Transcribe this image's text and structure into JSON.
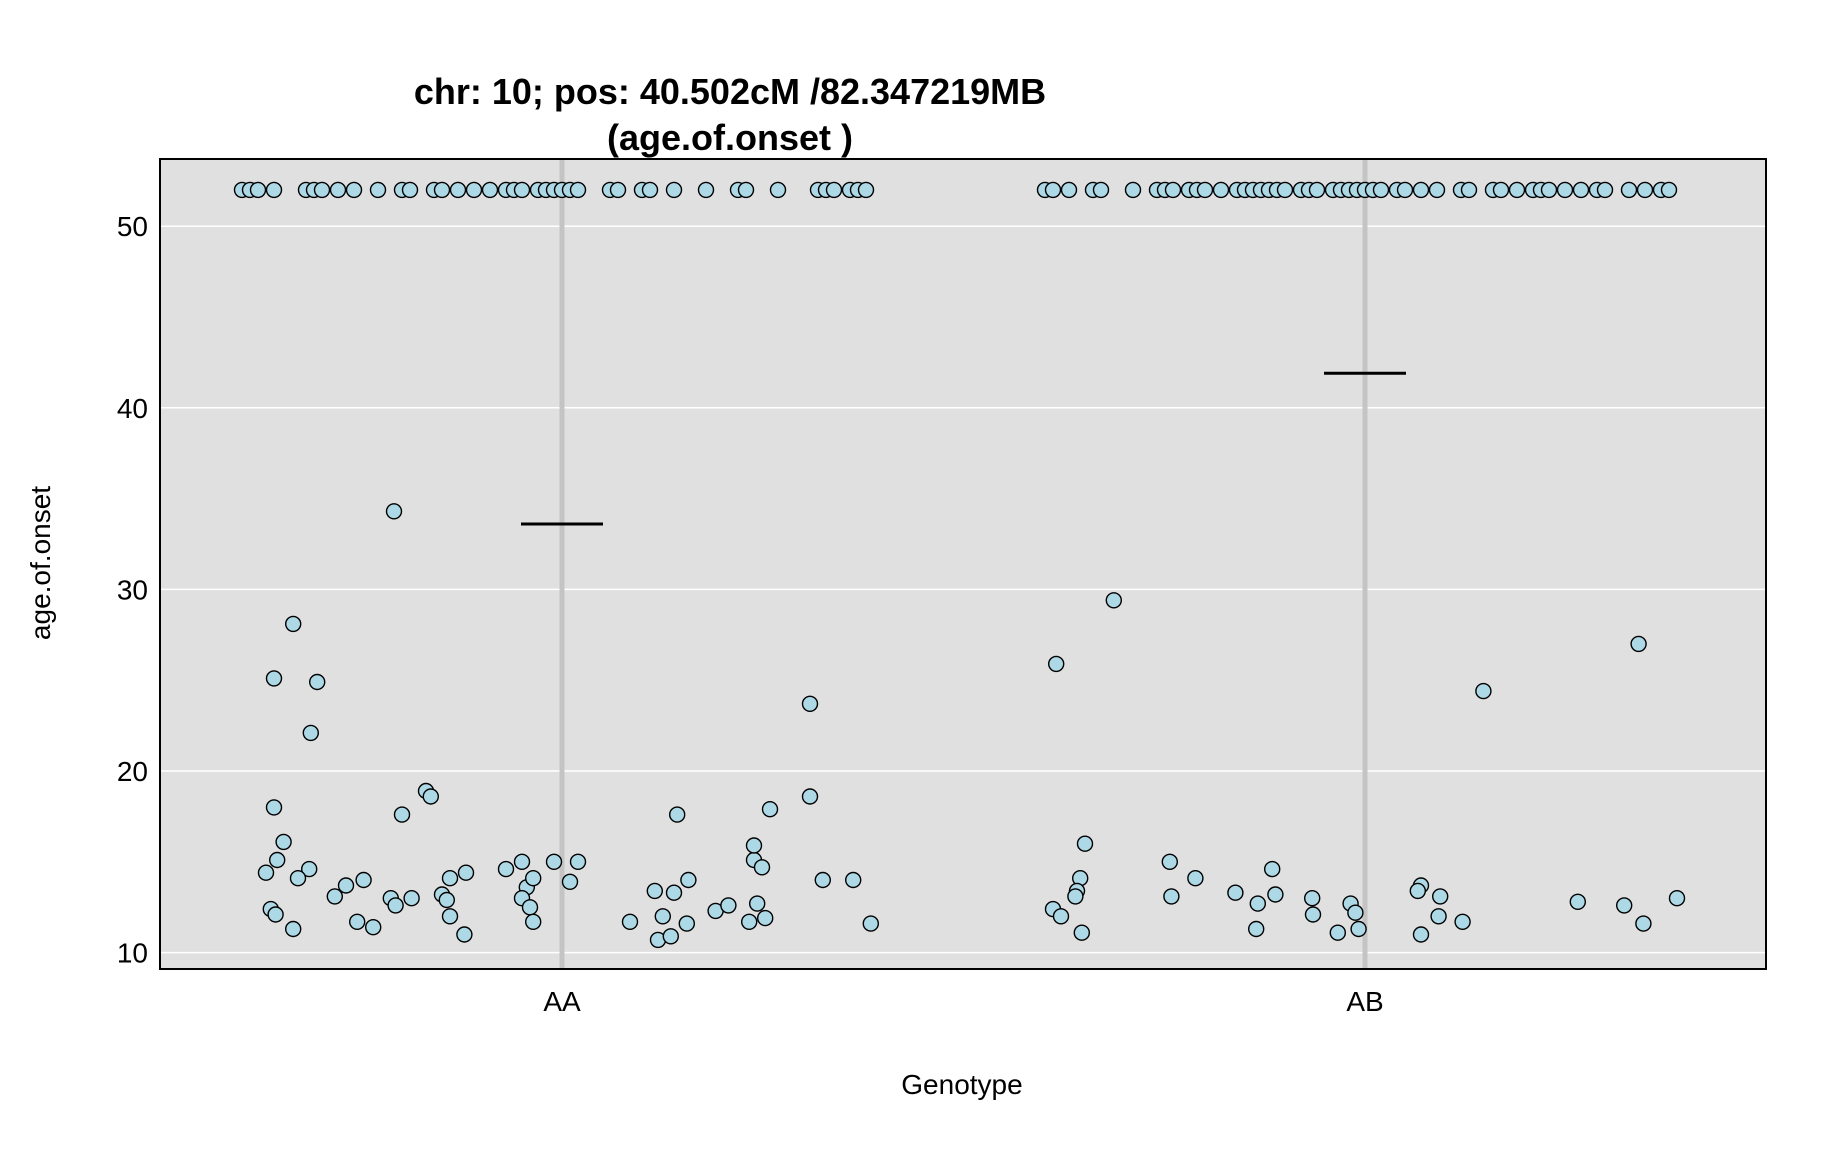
{
  "chart_data": {
    "type": "scatter",
    "title_line1": "chr: 10; pos: 40.502cM /82.347219MB",
    "title_line2": "(age.of.onset )",
    "xlabel": "Genotype",
    "ylabel": "age.of.onset",
    "categories": [
      "AA",
      "AB"
    ],
    "yticks": [
      10,
      20,
      30,
      40,
      50
    ],
    "ylim": [
      9.1,
      53.7
    ],
    "grid": true,
    "colors": {
      "panel": "#e0e0e0",
      "gridline": "#ffffff",
      "category_line": "#c4c4c4",
      "point_fill": "#add8e6",
      "point_stroke": "#000000"
    },
    "means": {
      "AA": 33.6,
      "AB": 41.9
    },
    "series": [
      {
        "category": "AA",
        "points": [
          [
            -0.2,
            52
          ],
          [
            -0.195,
            52
          ],
          [
            -0.19,
            52
          ],
          [
            -0.18,
            52
          ],
          [
            -0.16,
            52
          ],
          [
            -0.155,
            52
          ],
          [
            -0.15,
            52
          ],
          [
            -0.14,
            52
          ],
          [
            -0.13,
            52
          ],
          [
            -0.115,
            52
          ],
          [
            -0.1,
            52
          ],
          [
            -0.095,
            52
          ],
          [
            -0.08,
            52
          ],
          [
            -0.075,
            52
          ],
          [
            -0.065,
            52
          ],
          [
            -0.055,
            52
          ],
          [
            -0.045,
            52
          ],
          [
            -0.035,
            52
          ],
          [
            -0.03,
            52
          ],
          [
            -0.025,
            52
          ],
          [
            -0.015,
            52
          ],
          [
            -0.01,
            52
          ],
          [
            -0.005,
            52
          ],
          [
            0.0,
            52
          ],
          [
            0.005,
            52
          ],
          [
            0.01,
            52
          ],
          [
            0.03,
            52
          ],
          [
            0.035,
            52
          ],
          [
            0.05,
            52
          ],
          [
            0.055,
            52
          ],
          [
            0.07,
            52
          ],
          [
            0.09,
            52
          ],
          [
            0.11,
            52
          ],
          [
            0.115,
            52
          ],
          [
            0.135,
            52
          ],
          [
            0.16,
            52
          ],
          [
            0.165,
            52
          ],
          [
            0.17,
            52
          ],
          [
            0.18,
            52
          ],
          [
            0.185,
            52
          ],
          [
            0.19,
            52
          ],
          [
            -0.105,
            34.3
          ],
          [
            -0.168,
            28.1
          ],
          [
            -0.18,
            25.1
          ],
          [
            -0.153,
            24.9
          ],
          [
            -0.157,
            22.1
          ],
          [
            -0.085,
            18.9
          ],
          [
            -0.082,
            18.6
          ],
          [
            -0.18,
            18.0
          ],
          [
            -0.1,
            17.6
          ],
          [
            -0.174,
            16.1
          ],
          [
            -0.178,
            15.1
          ],
          [
            -0.185,
            14.4
          ],
          [
            -0.158,
            14.6
          ],
          [
            -0.165,
            14.1
          ],
          [
            -0.124,
            14.0
          ],
          [
            -0.135,
            13.7
          ],
          [
            -0.07,
            14.1
          ],
          [
            -0.06,
            14.4
          ],
          [
            -0.142,
            13.1
          ],
          [
            -0.107,
            13.0
          ],
          [
            -0.094,
            13.0
          ],
          [
            -0.075,
            13.2
          ],
          [
            -0.072,
            12.9
          ],
          [
            -0.104,
            12.6
          ],
          [
            -0.182,
            12.4
          ],
          [
            -0.179,
            12.1
          ],
          [
            -0.128,
            11.7
          ],
          [
            -0.07,
            12.0
          ],
          [
            -0.168,
            11.3
          ],
          [
            -0.118,
            11.4
          ],
          [
            -0.061,
            11.0
          ],
          [
            -0.035,
            14.6
          ],
          [
            -0.025,
            15.0
          ],
          [
            -0.022,
            13.6
          ],
          [
            -0.025,
            13.0
          ],
          [
            -0.02,
            12.5
          ],
          [
            -0.018,
            14.1
          ],
          [
            -0.018,
            11.7
          ],
          [
            -0.005,
            15.0
          ],
          [
            0.005,
            13.9
          ],
          [
            0.01,
            15.0
          ],
          [
            0.072,
            17.6
          ],
          [
            0.058,
            13.4
          ],
          [
            0.079,
            14.0
          ],
          [
            0.07,
            13.3
          ],
          [
            0.0425,
            11.7
          ],
          [
            0.063,
            12.0
          ],
          [
            0.06,
            10.7
          ],
          [
            0.068,
            10.9
          ],
          [
            0.078,
            11.6
          ],
          [
            0.096,
            12.3
          ],
          [
            0.104,
            12.6
          ],
          [
            0.117,
            11.7
          ],
          [
            0.122,
            12.7
          ],
          [
            0.127,
            11.9
          ],
          [
            0.12,
            15.1
          ],
          [
            0.12,
            15.9
          ],
          [
            0.125,
            14.7
          ],
          [
            0.13,
            17.9
          ],
          [
            0.155,
            23.7
          ],
          [
            0.155,
            18.6
          ],
          [
            0.163,
            14.0
          ],
          [
            0.182,
            14.0
          ],
          [
            0.193,
            11.6
          ]
        ]
      },
      {
        "category": "AB",
        "points": [
          [
            -0.2,
            52
          ],
          [
            -0.195,
            52
          ],
          [
            -0.185,
            52
          ],
          [
            -0.17,
            52
          ],
          [
            -0.165,
            52
          ],
          [
            -0.145,
            52
          ],
          [
            -0.13,
            52
          ],
          [
            -0.125,
            52
          ],
          [
            -0.12,
            52
          ],
          [
            -0.11,
            52
          ],
          [
            -0.105,
            52
          ],
          [
            -0.1,
            52
          ],
          [
            -0.09,
            52
          ],
          [
            -0.08,
            52
          ],
          [
            -0.075,
            52
          ],
          [
            -0.07,
            52
          ],
          [
            -0.065,
            52
          ],
          [
            -0.06,
            52
          ],
          [
            -0.055,
            52
          ],
          [
            -0.05,
            52
          ],
          [
            -0.04,
            52
          ],
          [
            -0.035,
            52
          ],
          [
            -0.03,
            52
          ],
          [
            -0.02,
            52
          ],
          [
            -0.015,
            52
          ],
          [
            -0.01,
            52
          ],
          [
            -0.005,
            52
          ],
          [
            0.0,
            52
          ],
          [
            0.005,
            52
          ],
          [
            0.01,
            52
          ],
          [
            0.02,
            52
          ],
          [
            0.025,
            52
          ],
          [
            0.035,
            52
          ],
          [
            0.045,
            52
          ],
          [
            0.06,
            52
          ],
          [
            0.065,
            52
          ],
          [
            0.08,
            52
          ],
          [
            0.085,
            52
          ],
          [
            0.095,
            52
          ],
          [
            0.105,
            52
          ],
          [
            0.11,
            52
          ],
          [
            0.115,
            52
          ],
          [
            0.125,
            52
          ],
          [
            0.135,
            52
          ],
          [
            0.145,
            52
          ],
          [
            0.15,
            52
          ],
          [
            0.165,
            52
          ],
          [
            0.175,
            52
          ],
          [
            0.185,
            52
          ],
          [
            0.19,
            52
          ],
          [
            -0.157,
            29.4
          ],
          [
            -0.193,
            25.9
          ],
          [
            -0.175,
            16.0
          ],
          [
            -0.178,
            14.1
          ],
          [
            -0.18,
            13.4
          ],
          [
            -0.181,
            13.1
          ],
          [
            -0.195,
            12.4
          ],
          [
            -0.19,
            12.0
          ],
          [
            -0.177,
            11.1
          ],
          [
            -0.122,
            15.0
          ],
          [
            -0.106,
            14.1
          ],
          [
            -0.121,
            13.1
          ],
          [
            -0.058,
            14.6
          ],
          [
            -0.056,
            13.2
          ],
          [
            -0.081,
            13.3
          ],
          [
            -0.033,
            13.0
          ],
          [
            -0.067,
            12.7
          ],
          [
            -0.009,
            12.7
          ],
          [
            -0.0325,
            12.1
          ],
          [
            -0.006,
            12.2
          ],
          [
            -0.068,
            11.3
          ],
          [
            -0.017,
            11.1
          ],
          [
            -0.004,
            11.3
          ],
          [
            0.035,
            13.7
          ],
          [
            0.047,
            13.1
          ],
          [
            0.033,
            13.4
          ],
          [
            0.046,
            12.0
          ],
          [
            0.061,
            11.7
          ],
          [
            0.074,
            24.4
          ],
          [
            0.171,
            27.0
          ],
          [
            0.133,
            12.8
          ],
          [
            0.162,
            12.6
          ],
          [
            0.174,
            11.6
          ],
          [
            0.195,
            13.0
          ],
          [
            0.035,
            11.0
          ]
        ]
      }
    ]
  }
}
